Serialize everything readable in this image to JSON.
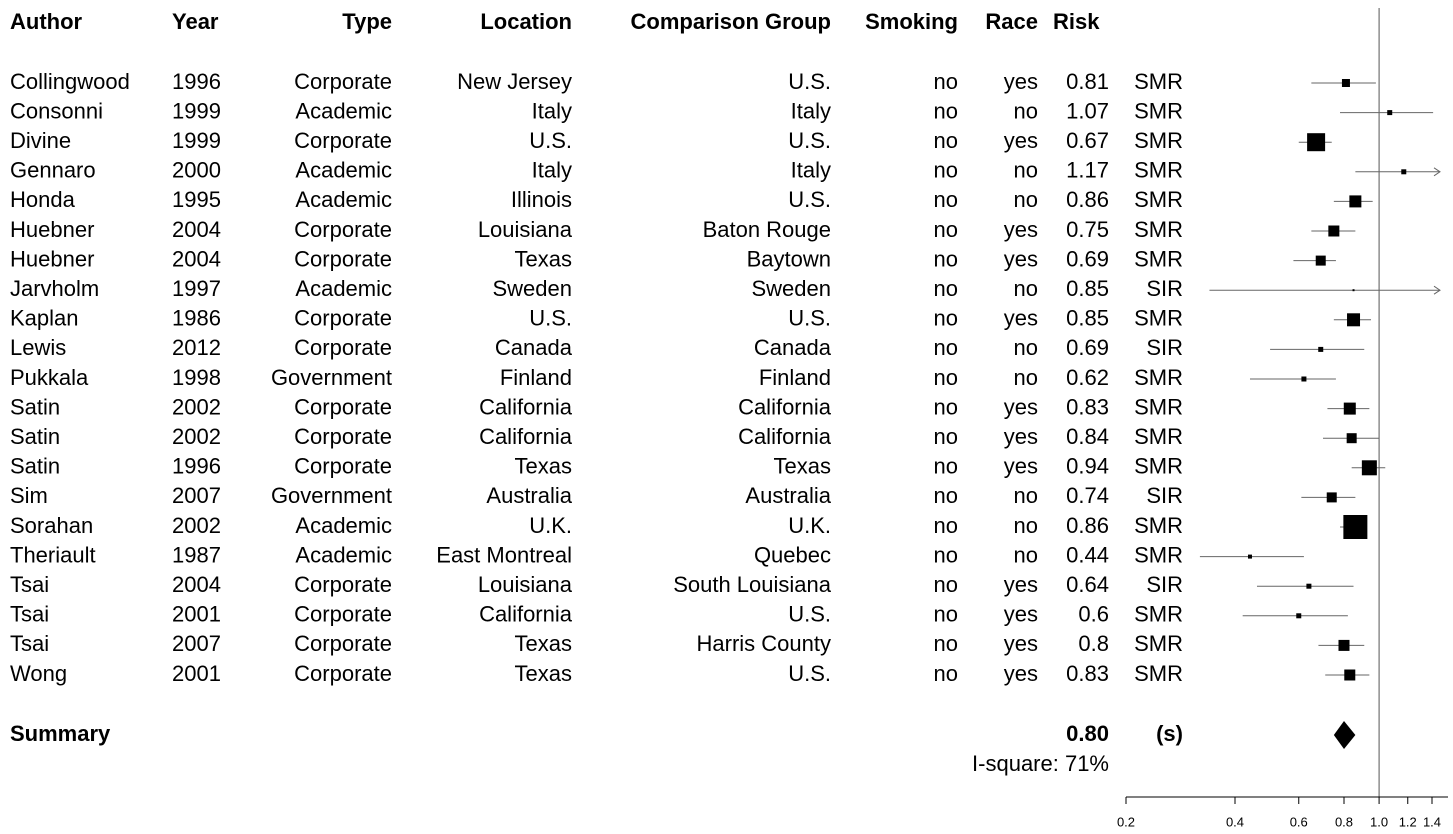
{
  "chart_data": {
    "type": "forest",
    "columns": [
      "Author",
      "Year",
      "Type",
      "Location",
      "Comparison Group",
      "Smoking",
      "Race",
      "Risk"
    ],
    "rows": [
      [
        "Collingwood",
        "1996",
        "Corporate",
        "New Jersey",
        "U.S.",
        "no",
        "yes"
      ],
      [
        "Consonni",
        "1999",
        "Academic",
        "Italy",
        "Italy",
        "no",
        "no"
      ],
      [
        "Divine",
        "1999",
        "Corporate",
        "U.S.",
        "U.S.",
        "no",
        "yes"
      ],
      [
        "Gennaro",
        "2000",
        "Academic",
        "Italy",
        "Italy",
        "no",
        "no"
      ],
      [
        "Honda",
        "1995",
        "Academic",
        "Illinois",
        "U.S.",
        "no",
        "no"
      ],
      [
        "Huebner",
        "2004",
        "Corporate",
        "Louisiana",
        "Baton Rouge",
        "no",
        "yes"
      ],
      [
        "Huebner",
        "2004",
        "Corporate",
        "Texas",
        "Baytown",
        "no",
        "yes"
      ],
      [
        "Jarvholm",
        "1997",
        "Academic",
        "Sweden",
        "Sweden",
        "no",
        "no"
      ],
      [
        "Kaplan",
        "1986",
        "Corporate",
        "U.S.",
        "U.S.",
        "no",
        "yes"
      ],
      [
        "Lewis",
        "2012",
        "Corporate",
        "Canada",
        "Canada",
        "no",
        "no"
      ],
      [
        "Pukkala",
        "1998",
        "Government",
        "Finland",
        "Finland",
        "no",
        "no"
      ],
      [
        "Satin",
        "2002",
        "Corporate",
        "California",
        "California",
        "no",
        "yes"
      ],
      [
        "Satin",
        "2002",
        "Corporate",
        "California",
        "California",
        "no",
        "yes"
      ],
      [
        "Satin",
        "1996",
        "Corporate",
        "Texas",
        "Texas",
        "no",
        "yes"
      ],
      [
        "Sim",
        "2007",
        "Government",
        "Australia",
        "Australia",
        "no",
        "no"
      ],
      [
        "Sorahan",
        "2002",
        "Academic",
        "U.K.",
        "U.K.",
        "no",
        "no"
      ],
      [
        "Theriault",
        "1987",
        "Academic",
        "East Montreal",
        "Quebec",
        "no",
        "no"
      ],
      [
        "Tsai",
        "2004",
        "Corporate",
        "Louisiana",
        "South Louisiana",
        "no",
        "yes"
      ],
      [
        "Tsai",
        "2001",
        "Corporate",
        "California",
        "U.S.",
        "no",
        "yes"
      ],
      [
        "Tsai",
        "2007",
        "Corporate",
        "Texas",
        "Harris County",
        "no",
        "yes"
      ],
      [
        "Wong",
        "2001",
        "Corporate",
        "Texas",
        "U.S.",
        "no",
        "yes"
      ]
    ],
    "risk": [
      0.81,
      1.07,
      0.67,
      1.17,
      0.86,
      0.75,
      0.69,
      0.85,
      0.85,
      0.69,
      0.62,
      0.83,
      0.84,
      0.94,
      0.74,
      0.86,
      0.44,
      0.64,
      0.6,
      0.8,
      0.83
    ],
    "measure": [
      "SMR",
      "SMR",
      "SMR",
      "SMR",
      "SMR",
      "SMR",
      "SMR",
      "SIR",
      "SMR",
      "SIR",
      "SMR",
      "SMR",
      "SMR",
      "SMR",
      "SIR",
      "SMR",
      "SMR",
      "SIR",
      "SMR",
      "SMR",
      "SMR"
    ],
    "lower": [
      0.65,
      0.78,
      0.6,
      0.86,
      0.75,
      0.65,
      0.58,
      0.34,
      0.75,
      0.5,
      0.44,
      0.72,
      0.7,
      0.84,
      0.61,
      0.78,
      0.32,
      0.46,
      0.42,
      0.68,
      0.71
    ],
    "upper": [
      0.98,
      1.41,
      0.74,
      1.6,
      0.96,
      0.86,
      0.76,
      1.6,
      0.95,
      0.91,
      0.76,
      0.94,
      1.0,
      1.04,
      0.86,
      0.92,
      0.62,
      0.85,
      0.82,
      0.91,
      0.94
    ],
    "weights": [
      8,
      5,
      18,
      5,
      12,
      11,
      10,
      2,
      13,
      5,
      5,
      12,
      10,
      15,
      10,
      24,
      4,
      5,
      5,
      11,
      11
    ],
    "summary": {
      "label": "Summary",
      "value": 0.8,
      "value_label": "0.80",
      "measure": "(s)",
      "lower": 0.75,
      "upper": 0.86,
      "heterogeneity": "I-square: 71%"
    },
    "reference": 1,
    "log_scale": true,
    "xlim": [
      0.2,
      1.55
    ],
    "xticks": [
      0.2,
      0.4,
      0.6,
      0.8,
      {
        "value": 1,
        "label": "1.0"
      },
      1.2,
      1.4
    ]
  }
}
